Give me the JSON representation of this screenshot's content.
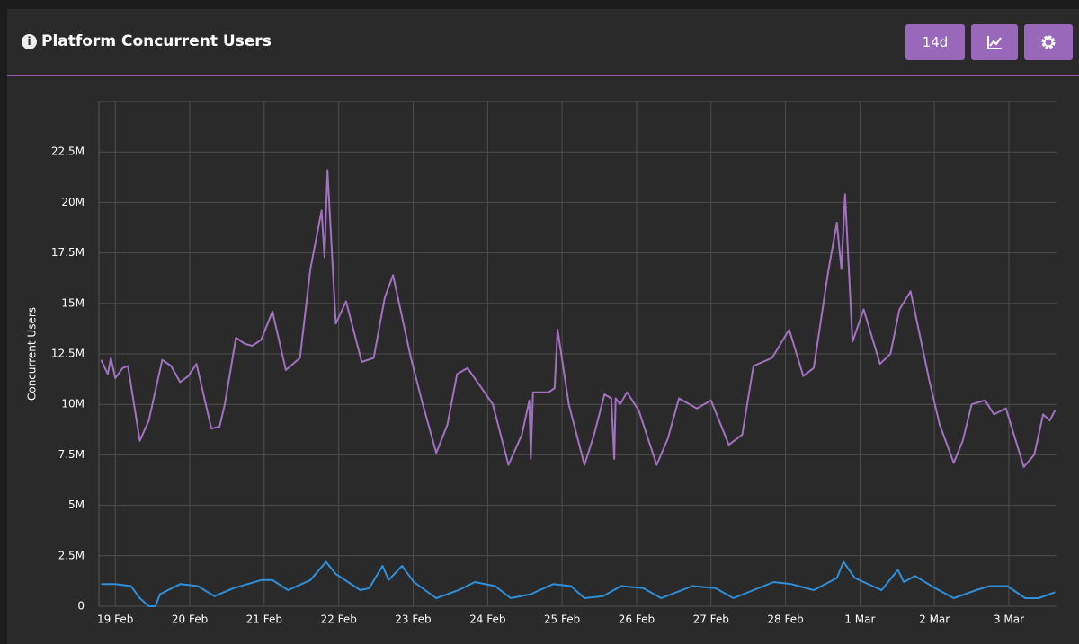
{
  "chart_data": {
    "type": "line",
    "title": "Platform Concurrent Users",
    "range_button": "14d",
    "ylabel": "Concurrent Users",
    "xlim": [
      -0.22,
      12.64
    ],
    "xticks": [
      {
        "value": 0,
        "label": "19 Feb"
      },
      {
        "value": 1,
        "label": "20 Feb"
      },
      {
        "value": 2,
        "label": "21 Feb"
      },
      {
        "value": 3,
        "label": "22 Feb"
      },
      {
        "value": 4,
        "label": "23 Feb"
      },
      {
        "value": 5,
        "label": "24 Feb"
      },
      {
        "value": 6,
        "label": "25 Feb"
      },
      {
        "value": 7,
        "label": "26 Feb"
      },
      {
        "value": 8,
        "label": "27 Feb"
      },
      {
        "value": 9,
        "label": "28 Feb"
      },
      {
        "value": 10,
        "label": "1 Mar"
      },
      {
        "value": 11,
        "label": "2 Mar"
      },
      {
        "value": 12,
        "label": "3 Mar"
      }
    ],
    "ylim": [
      0,
      25000000
    ],
    "yticks": [
      0,
      {
        "value": 2500000,
        "label": "2.5M"
      },
      {
        "value": 5000000,
        "label": "5M"
      },
      {
        "value": 7500000,
        "label": "7.5M"
      },
      {
        "value": 10000000,
        "label": "10M"
      },
      {
        "value": 12500000,
        "label": "12.5M"
      },
      {
        "value": 15000000,
        "label": "15M"
      },
      {
        "value": 17500000,
        "label": "17.5M"
      },
      {
        "value": 20000000,
        "label": "20M"
      },
      {
        "value": 22500000,
        "label": "22.5M"
      }
    ],
    "grid": true,
    "series": [
      {
        "color": "#a271c2",
        "x": [
          -0.19,
          -0.1,
          -0.06,
          0,
          0.1,
          0.17,
          0.33,
          0.45,
          0.63,
          0.75,
          0.87,
          0.98,
          1.09,
          1.29,
          1.4,
          1.47,
          1.62,
          1.74,
          1.84,
          1.96,
          2.11,
          2.29,
          2.48,
          2.62,
          2.77,
          2.81,
          2.85,
          2.96,
          3.1,
          3.31,
          3.47,
          3.62,
          3.73,
          3.97,
          4.13,
          4.31,
          4.46,
          4.59,
          4.73,
          4.92,
          5.07,
          5.28,
          5.46,
          5.56,
          5.58,
          5.61,
          5.82,
          5.9,
          5.94,
          6.09,
          6.3,
          6.43,
          6.57,
          6.66,
          6.7,
          6.72,
          6.78,
          6.87,
          7.03,
          7.27,
          7.42,
          7.57,
          7.81,
          8.0,
          8.24,
          8.42,
          8.57,
          8.82,
          9.05,
          9.24,
          9.38,
          9.57,
          9.69,
          9.75,
          9.8,
          9.9,
          10.05,
          10.27,
          10.41,
          10.53,
          10.68,
          10.93,
          11.07,
          11.26,
          11.38,
          11.5,
          11.68,
          11.8,
          11.96,
          12.2,
          12.34,
          12.46,
          12.55,
          12.62
        ],
        "values": [
          12200000,
          11500000,
          12300000,
          11300000,
          11800000,
          11900000,
          8200000,
          9200000,
          12200000,
          11900000,
          11100000,
          11400000,
          12000000,
          8800000,
          8900000,
          10000000,
          13300000,
          13000000,
          12900000,
          13200000,
          14600000,
          11700000,
          12300000,
          16700000,
          19600000,
          17300000,
          21600000,
          14000000,
          15100000,
          12100000,
          12300000,
          15300000,
          16400000,
          12300000,
          10000000,
          7600000,
          9000000,
          11500000,
          11800000,
          10800000,
          10000000,
          7000000,
          8500000,
          10200000,
          7300000,
          10600000,
          10600000,
          10800000,
          13700000,
          10000000,
          7000000,
          8500000,
          10500000,
          10300000,
          7300000,
          10300000,
          10000000,
          10600000,
          9700000,
          7000000,
          8300000,
          10300000,
          9800000,
          10200000,
          8000000,
          8500000,
          11900000,
          12300000,
          13700000,
          11400000,
          11800000,
          16500000,
          19000000,
          16700000,
          20400000,
          13100000,
          14700000,
          12000000,
          12500000,
          14700000,
          15600000,
          11200000,
          9000000,
          7100000,
          8200000,
          10000000,
          10200000,
          9500000,
          9800000,
          6900000,
          7500000,
          9500000,
          9200000,
          9700000
        ]
      },
      {
        "color": "#2f8fda",
        "x": [
          -0.19,
          0,
          0.21,
          0.33,
          0.45,
          0.54,
          0.6,
          0.87,
          1.11,
          1.33,
          1.59,
          1.96,
          2.11,
          2.32,
          2.62,
          2.83,
          2.96,
          3.29,
          3.41,
          3.59,
          3.67,
          3.85,
          4.01,
          4.31,
          4.61,
          4.83,
          5.1,
          5.31,
          5.58,
          5.88,
          6.12,
          6.3,
          6.55,
          6.79,
          7.09,
          7.33,
          7.75,
          8.06,
          8.3,
          8.84,
          9.08,
          9.38,
          9.69,
          9.78,
          9.93,
          10.29,
          10.51,
          10.59,
          10.74,
          11.01,
          11.26,
          11.56,
          11.74,
          11.98,
          12.22,
          12.4,
          12.62
        ],
        "values": [
          1100000,
          1100000,
          1000000,
          400000,
          0,
          0,
          600000,
          1100000,
          1000000,
          500000,
          900000,
          1300000,
          1300000,
          800000,
          1300000,
          2200000,
          1600000,
          800000,
          900000,
          2000000,
          1300000,
          2000000,
          1200000,
          400000,
          800000,
          1200000,
          1000000,
          400000,
          600000,
          1100000,
          1000000,
          400000,
          500000,
          1000000,
          900000,
          400000,
          1000000,
          900000,
          400000,
          1200000,
          1100000,
          800000,
          1400000,
          2200000,
          1400000,
          800000,
          1800000,
          1200000,
          1500000,
          900000,
          400000,
          800000,
          1000000,
          1000000,
          400000,
          400000,
          700000
        ]
      }
    ]
  }
}
